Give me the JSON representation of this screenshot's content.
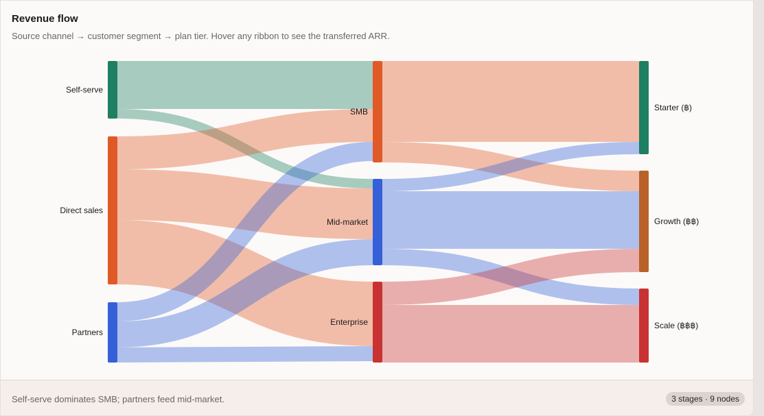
{
  "header": {
    "title": "Revenue flow",
    "subtitle": "Source channel → customer segment → plan tier. Hover any ribbon to see the transferred ARR."
  },
  "footer": {
    "note": "Self-serve dominates SMB; partners feed mid-market.",
    "badge": "3 stages · 9 nodes"
  },
  "chart_data": {
    "type": "sankey",
    "title": "Revenue flow",
    "nodes": [
      {
        "id": "self",
        "label": "Self-serve",
        "stage": 0,
        "color": "#1e7f62"
      },
      {
        "id": "direct",
        "label": "Direct sales",
        "stage": 0,
        "color": "#e05a28"
      },
      {
        "id": "partners",
        "label": "Partners",
        "stage": 0,
        "color": "#3560d8"
      },
      {
        "id": "smb",
        "label": "SMB",
        "stage": 1,
        "color": "#e05a28"
      },
      {
        "id": "mid",
        "label": "Mid-market",
        "stage": 1,
        "color": "#3560d8"
      },
      {
        "id": "ent",
        "label": "Enterprise",
        "stage": 1,
        "color": "#c93232"
      },
      {
        "id": "starter",
        "label": "Starter (฿)",
        "stage": 2,
        "color": "#1e7f62"
      },
      {
        "id": "growth",
        "label": "Growth (฿฿)",
        "stage": 2,
        "color": "#b8622a"
      },
      {
        "id": "scale",
        "label": "Scale (฿฿฿)",
        "stage": 2,
        "color": "#c93232"
      }
    ],
    "links": [
      {
        "source": "self",
        "target": "smb",
        "value": 35
      },
      {
        "source": "self",
        "target": "mid",
        "value": 7
      },
      {
        "source": "direct",
        "target": "smb",
        "value": 24
      },
      {
        "source": "direct",
        "target": "mid",
        "value": 37
      },
      {
        "source": "direct",
        "target": "ent",
        "value": 47
      },
      {
        "source": "partners",
        "target": "smb",
        "value": 14
      },
      {
        "source": "partners",
        "target": "mid",
        "value": 19
      },
      {
        "source": "partners",
        "target": "ent",
        "value": 11
      },
      {
        "source": "smb",
        "target": "starter",
        "value": 59
      },
      {
        "source": "smb",
        "target": "growth",
        "value": 15
      },
      {
        "source": "mid",
        "target": "starter",
        "value": 9
      },
      {
        "source": "mid",
        "target": "growth",
        "value": 42
      },
      {
        "source": "mid",
        "target": "scale",
        "value": 12
      },
      {
        "source": "ent",
        "target": "growth",
        "value": 17
      },
      {
        "source": "ent",
        "target": "scale",
        "value": 42
      }
    ]
  }
}
